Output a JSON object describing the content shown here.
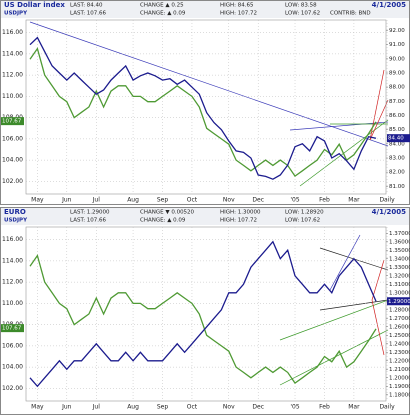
{
  "chart_data": [
    {
      "type": "line",
      "title": "US Dollar index",
      "date": "4/1/2005",
      "stats": [
        [
          "LAST: 84.40",
          "CHANGE ▲ 0.25",
          "HIGH: 84.65",
          "LOW: 83.58"
        ],
        [
          "LAST: 107.66",
          "CHANGE: ▲ 0.09",
          "HIGH: 107.72",
          "LOW: 107.62",
          "CONTRIB: BND"
        ]
      ],
      "series": [
        {
          "name": "USDJPY",
          "color": "#4f9a34",
          "axis": "y",
          "values": [
            113.5,
            114.5,
            112,
            111,
            110,
            109.5,
            108,
            108.5,
            109,
            110.5,
            109,
            110.5,
            111,
            111,
            110,
            110,
            109.5,
            109.5,
            110,
            110.5,
            111,
            110.5,
            110,
            109,
            107,
            106.5,
            106,
            105.5,
            104,
            103.5,
            103,
            103.5,
            104,
            103.5,
            104,
            103.5,
            102.5,
            103,
            103.5,
            104,
            105,
            104.5,
            105.5,
            104,
            104.5,
            105.5,
            106.5,
            107.6
          ]
        },
        {
          "color": "#1c1c8e",
          "axis": "y2",
          "values": [
            91,
            91.5,
            90.5,
            89.5,
            89,
            88.5,
            89,
            88.5,
            88,
            87.5,
            87.8,
            88.5,
            89,
            89.5,
            88.5,
            88.8,
            89,
            88.8,
            88.5,
            88.6,
            88.2,
            88.5,
            88,
            87.5,
            86.2,
            85.5,
            85,
            84.2,
            83.5,
            83.4,
            83,
            81.8,
            81.7,
            81.5,
            81.8,
            82.5,
            83.8,
            84,
            83.5,
            84.5,
            84.2,
            83,
            83.3,
            82.8,
            82.2,
            83.5,
            84.5,
            84.4
          ]
        }
      ],
      "ylim": [
        101,
        117
      ],
      "yticks": [
        {
          "value": 116,
          "label": "116.00"
        },
        {
          "value": 114,
          "label": "114.00"
        },
        {
          "value": 112,
          "label": "112.00"
        },
        {
          "value": 110,
          "label": "110.00"
        },
        {
          "value": 108,
          "label": "108.00"
        },
        {
          "value": 106,
          "label": "106.00"
        },
        {
          "value": 104,
          "label": "104.00"
        },
        {
          "value": 102,
          "label": "102.00"
        }
      ],
      "y2lim": [
        80.6,
        92.6
      ],
      "y2ticks": [
        {
          "value": 92,
          "label": "92.00"
        },
        {
          "value": 91,
          "label": "91.00"
        },
        {
          "value": 90,
          "label": "90.00"
        },
        {
          "value": 89,
          "label": "89.00"
        },
        {
          "value": 88,
          "label": "88.00"
        },
        {
          "value": 87,
          "label": "87.00"
        },
        {
          "value": 86,
          "label": "86.00"
        },
        {
          "value": 85,
          "label": "85.00"
        },
        {
          "value": 84,
          "label": "84.00"
        },
        {
          "value": 83,
          "label": "83.00"
        },
        {
          "value": 82,
          "label": "82.00"
        },
        {
          "value": 81,
          "label": "81.00"
        }
      ],
      "xticks": [
        {
          "value": 1,
          "label": "May"
        },
        {
          "value": 5,
          "label": "Jun"
        },
        {
          "value": 9,
          "label": "Jul"
        },
        {
          "value": 14,
          "label": "Aug"
        },
        {
          "value": 18,
          "label": "Sep"
        },
        {
          "value": 22,
          "label": "Oct"
        },
        {
          "value": 27,
          "label": "Nov"
        },
        {
          "value": 31,
          "label": "Dec"
        },
        {
          "value": 36,
          "label": "'05"
        },
        {
          "value": 40,
          "label": "Feb"
        },
        {
          "value": 44,
          "label": "Mar"
        },
        {
          "value": 48.5,
          "label": "Daily"
        }
      ],
      "markers": [
        {
          "value": 107.67,
          "label": "107.67",
          "axis": "y",
          "color": "#3c8a2a"
        },
        {
          "value": 84.4,
          "label": "84.40",
          "axis": "y2",
          "color": "#1c1c8e"
        }
      ],
      "grid": true
    },
    {
      "type": "line",
      "title": "EURO",
      "date": "4/1/2005",
      "stats": [
        [
          "LAST: 1.29000",
          "CHANGE ▼ 0.00520",
          "HIGH: 1.30000",
          "LOW: 1.28920"
        ],
        [
          "LAST: 107.66",
          "CHANGE: ▲ 0.09",
          "HIGH: 107.72",
          "LOW: 107.62"
        ]
      ],
      "series": [
        {
          "name": "USDJPY",
          "color": "#4f9a34",
          "axis": "y",
          "values": [
            113.5,
            114.5,
            112,
            111,
            110,
            109.5,
            108,
            108.5,
            109,
            110.5,
            109,
            110.5,
            111,
            111,
            110,
            110,
            109.5,
            109.5,
            110,
            110.5,
            111,
            110.5,
            110,
            109,
            107,
            106.5,
            106,
            105.5,
            104,
            103.5,
            103,
            103.5,
            104,
            103.5,
            104,
            103.5,
            102.5,
            103,
            103.5,
            104,
            105,
            104.5,
            105.5,
            104,
            104.5,
            105.5,
            106.5,
            107.6
          ]
        },
        {
          "color": "#1c1c8e",
          "axis": "y2",
          "values": [
            1.2,
            1.19,
            1.2,
            1.21,
            1.22,
            1.21,
            1.22,
            1.22,
            1.23,
            1.24,
            1.23,
            1.22,
            1.22,
            1.23,
            1.22,
            1.23,
            1.22,
            1.22,
            1.22,
            1.23,
            1.24,
            1.23,
            1.24,
            1.25,
            1.26,
            1.27,
            1.28,
            1.3,
            1.3,
            1.31,
            1.33,
            1.34,
            1.35,
            1.36,
            1.34,
            1.35,
            1.32,
            1.31,
            1.3,
            1.3,
            1.31,
            1.3,
            1.32,
            1.33,
            1.34,
            1.33,
            1.31,
            1.29
          ]
        }
      ],
      "ylim": [
        101,
        117
      ],
      "yticks": [
        {
          "value": 116,
          "label": "116.00"
        },
        {
          "value": 114,
          "label": "114.00"
        },
        {
          "value": 112,
          "label": "112.00"
        },
        {
          "value": 110,
          "label": "110.00"
        },
        {
          "value": 108,
          "label": "108.00"
        },
        {
          "value": 106,
          "label": "106.00"
        },
        {
          "value": 104,
          "label": "104.00"
        },
        {
          "value": 102,
          "label": "102.00"
        }
      ],
      "y2lim": [
        1.175,
        1.375
      ],
      "y2ticks": [
        {
          "value": 1.37,
          "label": "1.37000"
        },
        {
          "value": 1.36,
          "label": "1.36000"
        },
        {
          "value": 1.35,
          "label": "1.35000"
        },
        {
          "value": 1.34,
          "label": "1.34000"
        },
        {
          "value": 1.33,
          "label": "1.33000"
        },
        {
          "value": 1.32,
          "label": "1.32000"
        },
        {
          "value": 1.31,
          "label": "1.31000"
        },
        {
          "value": 1.3,
          "label": "1.30000"
        },
        {
          "value": 1.29,
          "label": "1.29000"
        },
        {
          "value": 1.28,
          "label": "1.28000"
        },
        {
          "value": 1.27,
          "label": "1.27000"
        },
        {
          "value": 1.26,
          "label": "1.26000"
        },
        {
          "value": 1.25,
          "label": "1.25000"
        },
        {
          "value": 1.24,
          "label": "1.24000"
        },
        {
          "value": 1.23,
          "label": "1.23000"
        },
        {
          "value": 1.22,
          "label": "1.22000"
        },
        {
          "value": 1.21,
          "label": "1.21000"
        },
        {
          "value": 1.2,
          "label": "1.20000"
        },
        {
          "value": 1.19,
          "label": "1.19000"
        },
        {
          "value": 1.18,
          "label": "1.18000"
        }
      ],
      "xticks": [
        {
          "value": 1,
          "label": "May"
        },
        {
          "value": 5,
          "label": "Jun"
        },
        {
          "value": 9,
          "label": "Jul"
        },
        {
          "value": 14,
          "label": "Aug"
        },
        {
          "value": 18,
          "label": "Sep"
        },
        {
          "value": 22,
          "label": "Oct"
        },
        {
          "value": 27,
          "label": "Nov"
        },
        {
          "value": 31,
          "label": "Dec"
        },
        {
          "value": 36,
          "label": "'05"
        },
        {
          "value": 40,
          "label": "Feb"
        },
        {
          "value": 44,
          "label": "Mar"
        },
        {
          "value": 48.5,
          "label": "Daily"
        }
      ],
      "markers": [
        {
          "value": 107.67,
          "label": "107.67",
          "axis": "y",
          "color": "#3c8a2a"
        },
        {
          "value": 1.29,
          "label": "1.29000",
          "axis": "y2",
          "color": "#1c1c8e"
        }
      ],
      "grid": true
    }
  ]
}
